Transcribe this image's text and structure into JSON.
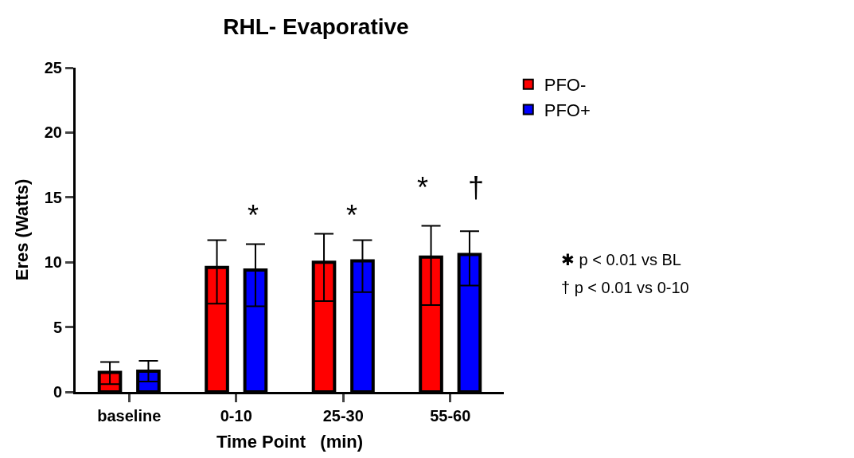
{
  "chart_data": {
    "type": "bar",
    "title": "RHL- Evaporative",
    "xlabel": "Time Point   (min)",
    "ylabel": "Eres (Watts)",
    "categories": [
      "baseline",
      "0-10",
      "25-30",
      "55-60"
    ],
    "series": [
      {
        "name": "PFO-",
        "color": "#ff0000",
        "values": [
          1.5,
          9.6,
          10.0,
          10.4
        ],
        "errors": [
          [
            0.6,
            2.3
          ],
          [
            6.8,
            11.7
          ],
          [
            7.0,
            12.2
          ],
          [
            6.7,
            12.8
          ]
        ]
      },
      {
        "name": "PFO+",
        "color": "#0000ff",
        "values": [
          1.6,
          9.4,
          10.1,
          10.6
        ],
        "errors": [
          [
            0.8,
            2.4
          ],
          [
            6.6,
            11.4
          ],
          [
            7.7,
            11.7
          ],
          [
            8.2,
            12.4
          ]
        ]
      }
    ],
    "ylim": [
      0,
      25
    ],
    "yticks": [
      0,
      5,
      10,
      15,
      20,
      25
    ],
    "legend": "top right",
    "annotations": [
      "*",
      "*",
      "*     †",
      "✱ p < 0.01 vs BL",
      "† p < 0.01 vs 0-10"
    ]
  }
}
